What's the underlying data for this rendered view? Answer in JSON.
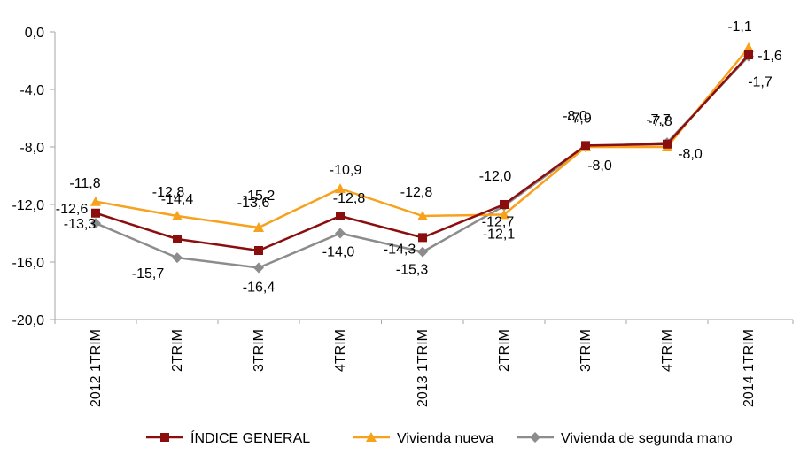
{
  "chart_data": {
    "type": "line",
    "title": "",
    "xlabel": "",
    "ylabel": "",
    "ylim": [
      -20.0,
      0.0
    ],
    "yticks": [
      0.0,
      -4.0,
      -8.0,
      -12.0,
      -16.0,
      -20.0
    ],
    "ytick_labels": [
      "0,0",
      "-4,0",
      "-8,0",
      "-12,0",
      "-16,0",
      "-20,0"
    ],
    "categories": [
      "2012 1TRIM",
      "2TRIM",
      "3TRIM",
      "4TRIM",
      "2013 1TRIM",
      "2TRIM",
      "3TRIM",
      "4TRIM",
      "2014 1TRIM"
    ],
    "legend_position": "bottom",
    "grid": false,
    "series": [
      {
        "name": "ÍNDICE GENERAL",
        "color": "#8b0e0e",
        "marker": "square",
        "values": [
          -12.6,
          -14.4,
          -15.2,
          -12.8,
          -14.3,
          -12.0,
          -7.9,
          -7.8,
          -1.6
        ],
        "labels": [
          "-12,6",
          "-14,4",
          "-15,2",
          "-12,8",
          "-14,3",
          "-12,0",
          "-7,9",
          "-7,8",
          "-1,6"
        ]
      },
      {
        "name": "Vivienda nueva",
        "color": "#f7a11c",
        "marker": "triangle",
        "values": [
          -11.8,
          -12.8,
          -13.6,
          -10.9,
          -12.8,
          -12.7,
          -8.0,
          -8.0,
          -1.1
        ],
        "labels": [
          "-11,8",
          "-12,8",
          "-13,6",
          "-10,9",
          "-12,8",
          "-12,7",
          "-8,0",
          "-8,0",
          "-1,1"
        ]
      },
      {
        "name": "Vivienda de segunda mano",
        "color": "#8c8c8c",
        "marker": "diamond",
        "values": [
          -13.3,
          -15.7,
          -16.4,
          -14.0,
          -15.3,
          -12.1,
          -8.0,
          -7.7,
          -1.7
        ],
        "labels": [
          "-13,3",
          "-15,7",
          "-16,4",
          "-14,0",
          "-15,3",
          "-12,1",
          "-8,0",
          "-7,7",
          "-1,7"
        ]
      }
    ]
  }
}
